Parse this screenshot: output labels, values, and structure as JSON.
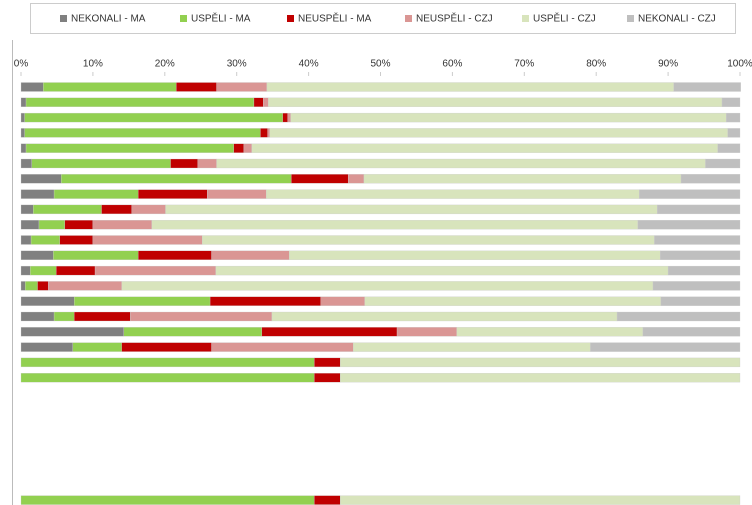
{
  "chart_data": {
    "type": "stacked_bar_horizontal",
    "categories": [
      null,
      null,
      null,
      null,
      null,
      null,
      null,
      null,
      null,
      null,
      null,
      null,
      null,
      null,
      null,
      null,
      null,
      null,
      null,
      null,
      null,
      null,
      null,
      null,
      null,
      null,
      null,
      null
    ],
    "series": [
      {
        "name": "NEKONALI - MA",
        "color": "#808080",
        "values": [
          3.1,
          0.7,
          0.5,
          0.5,
          0.7,
          1.5,
          5.6,
          4.6,
          1.7,
          2.5,
          1.4,
          4.5,
          1.3,
          0.6,
          7.4,
          4.6,
          14.3,
          7.2,
          0,
          0,
          null,
          null,
          null,
          null,
          null,
          null,
          null,
          0
        ]
      },
      {
        "name": "USPĚLI - MA",
        "color": "#92d050",
        "values": [
          18.5,
          31.7,
          35.9,
          32.8,
          28.9,
          19.3,
          32.0,
          11.7,
          9.5,
          3.6,
          4.0,
          11.8,
          3.6,
          1.7,
          18.9,
          2.8,
          19.2,
          6.8,
          40.8,
          40.8,
          null,
          null,
          null,
          null,
          null,
          null,
          null,
          40.8
        ]
      },
      {
        "name": "NEUSPĚLI - MA",
        "color": "#c00000",
        "values": [
          5.6,
          1.3,
          0.7,
          1.0,
          1.4,
          3.8,
          7.9,
          9.6,
          4.2,
          3.9,
          4.6,
          10.2,
          5.4,
          1.5,
          15.4,
          7.8,
          18.8,
          12.5,
          3.6,
          3.6,
          null,
          null,
          null,
          null,
          null,
          null,
          null,
          3.6
        ]
      },
      {
        "name": "NEUSPĚLI - CZJ",
        "color": "#da9694",
        "values": [
          7.0,
          0.7,
          0.4,
          0.3,
          1.1,
          2.6,
          2.2,
          8.2,
          4.7,
          8.2,
          15.2,
          10.8,
          16.8,
          10.2,
          6.1,
          19.7,
          8.3,
          19.7,
          0,
          0,
          null,
          null,
          null,
          null,
          null,
          null,
          null,
          0
        ]
      },
      {
        "name": "USPĚLI - CZJ",
        "color": "#d8e4bc",
        "values": [
          56.6,
          63.1,
          60.6,
          63.7,
          64.8,
          68.0,
          44.1,
          51.9,
          68.4,
          67.6,
          62.9,
          51.6,
          62.9,
          73.9,
          41.2,
          48.0,
          25.9,
          33.0,
          55.6,
          55.6,
          null,
          null,
          null,
          null,
          null,
          null,
          null,
          55.6
        ]
      },
      {
        "name": "NEKONALI - CZJ",
        "color": "#bfbfbf",
        "values": [
          9.3,
          2.5,
          1.9,
          1.7,
          3.1,
          4.8,
          8.2,
          14.0,
          11.5,
          14.2,
          11.9,
          11.1,
          10.0,
          12.1,
          11.0,
          17.1,
          13.5,
          20.8,
          0,
          0,
          null,
          null,
          null,
          null,
          null,
          null,
          null,
          0
        ]
      }
    ],
    "xlim": [
      0,
      100
    ],
    "xticks": [
      {
        "value": 0,
        "label": "0%"
      },
      {
        "value": 10,
        "label": "10%"
      },
      {
        "value": 20,
        "label": "20%"
      },
      {
        "value": 30,
        "label": "30%"
      },
      {
        "value": 40,
        "label": "40%"
      },
      {
        "value": 50,
        "label": "50%"
      },
      {
        "value": 60,
        "label": "60%"
      },
      {
        "value": 70,
        "label": "70%"
      },
      {
        "value": 80,
        "label": "80%"
      },
      {
        "value": 90,
        "label": "90%"
      },
      {
        "value": 100,
        "label": "100%"
      }
    ],
    "legend": "top",
    "grid": false
  }
}
